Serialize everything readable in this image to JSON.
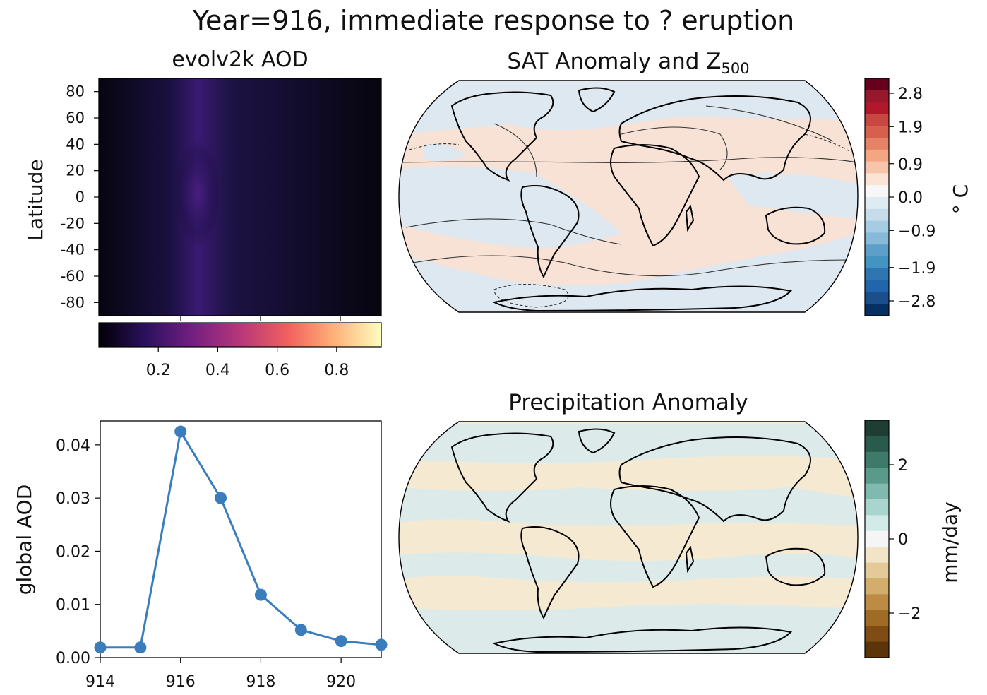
{
  "figure_title": "Year=916, immediate response to ? eruption",
  "panels": {
    "aod_map": {
      "title": "evolv2k AOD",
      "ylabel": "Latitude",
      "yticks": [
        "80",
        "60",
        "40",
        "20",
        "0",
        "-20",
        "-40",
        "-60",
        "-80"
      ],
      "colorbar_ticks": [
        "0.2",
        "0.4",
        "0.6",
        "0.8"
      ],
      "colormap": "magma",
      "cmap_colors": [
        "#000004",
        "#2c115f",
        "#721f81",
        "#b73779",
        "#f1605d",
        "#feb078",
        "#fcfdbf"
      ]
    },
    "sat_map": {
      "title_main": "SAT Anomaly and Z",
      "title_sub": "500",
      "colorbar_label": "° C",
      "colorbar_ticks": [
        "2.8",
        "1.9",
        "0.9",
        "0.0",
        "−0.9",
        "−1.9",
        "−2.8"
      ],
      "colorbar_colors": [
        "#67001f",
        "#98182b",
        "#b2182b",
        "#c94741",
        "#d6604d",
        "#e58267",
        "#f4a582",
        "#f7c5ab",
        "#fbe3d6",
        "#f7f7f7",
        "#deebf2",
        "#c7dcea",
        "#a6cce3",
        "#87b9d9",
        "#5e9fca",
        "#4393c3",
        "#2f75b2",
        "#2166ac",
        "#1b4f8c",
        "#053061"
      ],
      "warm_fill": "#f8e1d5",
      "cool_fill": "#dde8f0"
    },
    "aod_series": {
      "ylabel": "global AOD",
      "xticks": [
        "914",
        "916",
        "918",
        "920"
      ],
      "yticks": [
        "0.00",
        "0.01",
        "0.02",
        "0.03",
        "0.04"
      ],
      "line_color": "#3a7dbd"
    },
    "precip_map": {
      "title": "Precipitation Anomaly",
      "colorbar_label": "mm/day",
      "colorbar_ticks": [
        "2",
        "0",
        "−2"
      ],
      "colorbar_colors": [
        "#1e3d33",
        "#2a5a4c",
        "#3d7a6a",
        "#5a9a8a",
        "#80b9ad",
        "#a8d6cf",
        "#d2ebe8",
        "#f5f5f5",
        "#f2e4c7",
        "#e3ca98",
        "#d3ad6b",
        "#bd8b43",
        "#a06a27",
        "#7f4d14",
        "#5b3509"
      ],
      "dry_fill": "#f6e9d2",
      "wet_fill": "#dcebea"
    }
  },
  "chart_data": [
    {
      "type": "heatmap",
      "title": "evolv2k AOD",
      "ylabel": "Latitude",
      "ylim": [
        -90,
        90
      ],
      "colorbar_range": [
        0,
        0.95
      ],
      "feature": "weak aerosol plume centered near 0° latitude, peak AOD about 0.3"
    },
    {
      "type": "heatmap",
      "title": "SAT Anomaly and Z500",
      "colorbar_label": "° C",
      "colorbar_range": [
        -3.2,
        3.2
      ]
    },
    {
      "type": "line",
      "x": [
        914,
        915,
        916,
        917,
        918,
        919,
        920,
        921
      ],
      "y": [
        0.0019,
        0.0019,
        0.0425,
        0.03,
        0.0118,
        0.0052,
        0.0031,
        0.0024
      ],
      "xlabel": "",
      "ylabel": "global AOD",
      "xlim": [
        914,
        921
      ],
      "ylim": [
        0,
        0.0445
      ],
      "marker": "circle"
    },
    {
      "type": "heatmap",
      "title": "Precipitation Anomaly",
      "colorbar_label": "mm/day",
      "colorbar_range": [
        -3.2,
        3.2
      ]
    }
  ]
}
